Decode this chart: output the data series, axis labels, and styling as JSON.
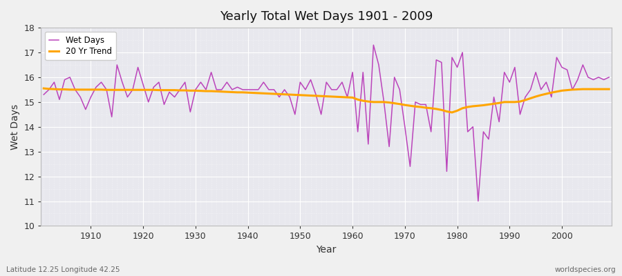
{
  "title": "Yearly Total Wet Days 1901 - 2009",
  "xlabel": "Year",
  "ylabel": "Wet Days",
  "footnote_left": "Latitude 12.25 Longitude 42.25",
  "footnote_right": "worldspecies.org",
  "ylim": [
    10,
    18
  ],
  "yticks": [
    10,
    11,
    12,
    13,
    14,
    15,
    16,
    17,
    18
  ],
  "xticks": [
    1910,
    1920,
    1930,
    1940,
    1950,
    1960,
    1970,
    1980,
    1990,
    2000
  ],
  "line_color": "#bb44bb",
  "trend_color": "#FFA500",
  "fig_bg_color": "#f0f0f0",
  "plot_bg_color": "#e8e8ee",
  "years": [
    1901,
    1902,
    1903,
    1904,
    1905,
    1906,
    1907,
    1908,
    1909,
    1910,
    1911,
    1912,
    1913,
    1914,
    1915,
    1916,
    1917,
    1918,
    1919,
    1920,
    1921,
    1922,
    1923,
    1924,
    1925,
    1926,
    1927,
    1928,
    1929,
    1930,
    1931,
    1932,
    1933,
    1934,
    1935,
    1936,
    1937,
    1938,
    1939,
    1940,
    1941,
    1942,
    1943,
    1944,
    1945,
    1946,
    1947,
    1948,
    1949,
    1950,
    1951,
    1952,
    1953,
    1954,
    1955,
    1956,
    1957,
    1958,
    1959,
    1960,
    1961,
    1962,
    1963,
    1964,
    1965,
    1966,
    1967,
    1968,
    1969,
    1970,
    1971,
    1972,
    1973,
    1974,
    1975,
    1976,
    1977,
    1978,
    1979,
    1980,
    1981,
    1982,
    1983,
    1984,
    1985,
    1986,
    1987,
    1988,
    1989,
    1990,
    1991,
    1992,
    1993,
    1994,
    1995,
    1996,
    1997,
    1998,
    1999,
    2000,
    2001,
    2002,
    2003,
    2004,
    2005,
    2006,
    2007,
    2008,
    2009
  ],
  "wet_days": [
    15.3,
    15.5,
    15.8,
    15.1,
    15.9,
    16.0,
    15.5,
    15.2,
    14.7,
    15.2,
    15.6,
    15.8,
    15.5,
    14.4,
    16.5,
    15.8,
    15.2,
    15.5,
    16.4,
    15.7,
    15.0,
    15.6,
    15.8,
    14.9,
    15.4,
    15.2,
    15.5,
    15.8,
    14.6,
    15.5,
    15.8,
    15.5,
    16.2,
    15.5,
    15.5,
    15.8,
    15.5,
    15.6,
    15.5,
    15.5,
    15.5,
    15.5,
    15.8,
    15.5,
    15.5,
    15.2,
    15.5,
    15.2,
    14.5,
    15.8,
    15.5,
    15.9,
    15.3,
    14.5,
    15.8,
    15.5,
    15.5,
    15.8,
    15.2,
    16.2,
    13.8,
    16.2,
    13.3,
    17.3,
    16.5,
    15.0,
    13.2,
    16.0,
    15.5,
    14.0,
    12.4,
    15.0,
    14.9,
    14.9,
    13.8,
    16.7,
    16.6,
    12.2,
    16.8,
    16.4,
    17.0,
    13.8,
    14.0,
    11.0,
    13.8,
    13.5,
    15.2,
    14.2,
    16.2,
    15.8,
    16.4,
    14.5,
    15.2,
    15.5,
    16.2,
    15.5,
    15.8,
    15.2,
    16.8,
    16.4,
    16.3,
    15.5,
    15.9,
    16.5,
    16.0,
    15.9,
    16.0,
    15.9,
    16.0
  ],
  "trend": [
    15.55,
    15.53,
    15.52,
    15.51,
    15.51,
    15.5,
    15.5,
    15.5,
    15.5,
    15.5,
    15.5,
    15.5,
    15.49,
    15.49,
    15.49,
    15.49,
    15.49,
    15.49,
    15.49,
    15.49,
    15.49,
    15.49,
    15.48,
    15.48,
    15.48,
    15.48,
    15.47,
    15.47,
    15.46,
    15.46,
    15.45,
    15.44,
    15.44,
    15.43,
    15.42,
    15.41,
    15.4,
    15.39,
    15.39,
    15.38,
    15.37,
    15.36,
    15.35,
    15.34,
    15.33,
    15.32,
    15.31,
    15.3,
    15.29,
    15.28,
    15.27,
    15.26,
    15.25,
    15.24,
    15.23,
    15.22,
    15.21,
    15.2,
    15.19,
    15.18,
    15.1,
    15.05,
    15.02,
    15.0,
    15.0,
    15.0,
    14.98,
    14.95,
    14.92,
    14.88,
    14.85,
    14.82,
    14.8,
    14.77,
    14.75,
    14.72,
    14.68,
    14.62,
    14.58,
    14.65,
    14.75,
    14.8,
    14.83,
    14.85,
    14.87,
    14.9,
    14.93,
    14.96,
    15.0,
    15.0,
    15.0,
    15.02,
    15.08,
    15.15,
    15.22,
    15.28,
    15.33,
    15.38,
    15.42,
    15.46,
    15.48,
    15.5,
    15.51,
    15.52,
    15.52,
    15.52,
    15.52,
    15.52,
    15.52
  ]
}
